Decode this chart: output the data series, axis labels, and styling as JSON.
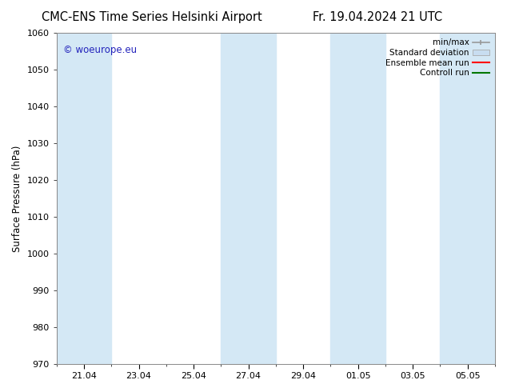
{
  "title_left": "CMC-ENS Time Series Helsinki Airport",
  "title_right": "Fr. 19.04.2024 21 UTC",
  "ylabel": "Surface Pressure (hPa)",
  "ylim": [
    970,
    1060
  ],
  "yticks": [
    970,
    980,
    990,
    1000,
    1010,
    1020,
    1030,
    1040,
    1050,
    1060
  ],
  "xtick_labels": [
    "21.04",
    "23.04",
    "25.04",
    "27.04",
    "29.04",
    "01.05",
    "03.05",
    "05.05"
  ],
  "xtick_positions": [
    1,
    3,
    5,
    7,
    9,
    11,
    13,
    15
  ],
  "xlim": [
    0,
    16
  ],
  "watermark": "© woeurope.eu",
  "watermark_color": "#2222bb",
  "legend_entries": [
    "min/max",
    "Standard deviation",
    "Ensemble mean run",
    "Controll run"
  ],
  "legend_colors": [
    "#aaaaaa",
    "#c8ddf0",
    "#ff0000",
    "#007700"
  ],
  "bg_color": "#ffffff",
  "plot_bg_color": "#ffffff",
  "shaded_band_color": "#d4e8f5",
  "shaded_columns": [
    {
      "xstart": 0,
      "xend": 2
    },
    {
      "xstart": 6,
      "xend": 8
    },
    {
      "xstart": 10,
      "xend": 12
    },
    {
      "xstart": 14,
      "xend": 16
    }
  ],
  "title_fontsize": 10.5,
  "tick_fontsize": 8,
  "ylabel_fontsize": 8.5,
  "legend_fontsize": 7.5
}
